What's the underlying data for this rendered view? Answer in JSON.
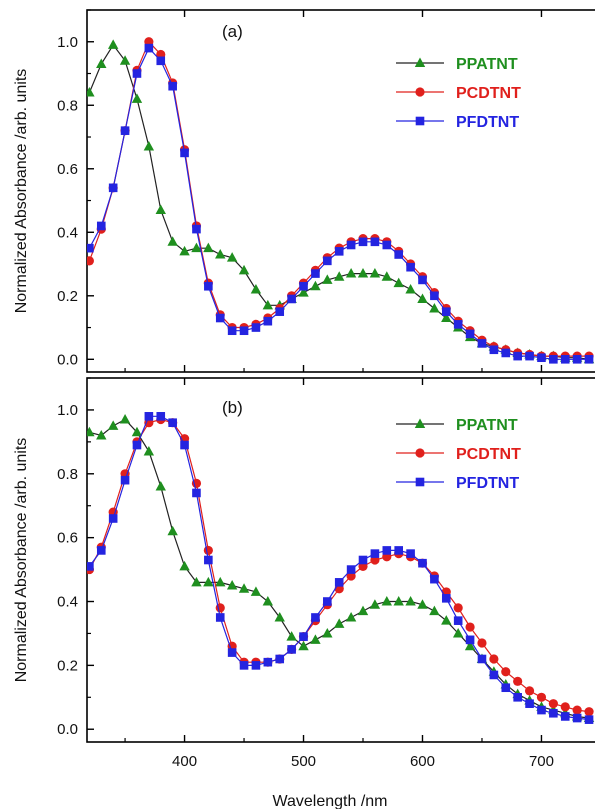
{
  "chart_data": [
    {
      "type": "line",
      "panel_label": "(a)",
      "xlim": [
        318,
        745
      ],
      "ylim": [
        -0.04,
        1.1
      ],
      "y_ticks": [
        0.0,
        0.2,
        0.4,
        0.6,
        0.8,
        1.0
      ],
      "y_tick_labels": [
        "0.0",
        "0.2",
        "0.4",
        "0.6",
        "0.8",
        "1.0"
      ],
      "x_ticks": [
        400,
        500,
        600,
        700
      ],
      "legend_position": "top-right",
      "series": [
        {
          "name": "PPATNT",
          "color": "#1f8f1f",
          "marker": "triangle",
          "x": [
            320,
            330,
            340,
            350,
            360,
            370,
            380,
            390,
            400,
            410,
            420,
            430,
            440,
            450,
            460,
            470,
            480,
            490,
            500,
            510,
            520,
            530,
            540,
            550,
            560,
            570,
            580,
            590,
            600,
            610,
            620,
            630,
            640,
            650,
            660,
            670,
            680,
            690,
            700,
            710,
            720,
            730,
            740
          ],
          "y": [
            0.84,
            0.93,
            0.99,
            0.94,
            0.82,
            0.67,
            0.47,
            0.37,
            0.34,
            0.35,
            0.35,
            0.33,
            0.32,
            0.28,
            0.22,
            0.17,
            0.17,
            0.19,
            0.21,
            0.23,
            0.25,
            0.26,
            0.27,
            0.27,
            0.27,
            0.26,
            0.24,
            0.22,
            0.19,
            0.16,
            0.13,
            0.1,
            0.07,
            0.05,
            0.04,
            0.03,
            0.02,
            0.015,
            0.01,
            0.01,
            0.005,
            0.005,
            0.0
          ]
        },
        {
          "name": "PCDTNT",
          "color": "#e0201c",
          "marker": "circle",
          "x": [
            320,
            330,
            340,
            350,
            360,
            370,
            380,
            390,
            400,
            410,
            420,
            430,
            440,
            450,
            460,
            470,
            480,
            490,
            500,
            510,
            520,
            530,
            540,
            550,
            560,
            570,
            580,
            590,
            600,
            610,
            620,
            630,
            640,
            650,
            660,
            670,
            680,
            690,
            700,
            710,
            720,
            730,
            740
          ],
          "y": [
            0.31,
            0.41,
            0.54,
            0.72,
            0.91,
            1.0,
            0.96,
            0.87,
            0.66,
            0.42,
            0.24,
            0.14,
            0.1,
            0.1,
            0.11,
            0.13,
            0.16,
            0.2,
            0.24,
            0.28,
            0.32,
            0.35,
            0.37,
            0.38,
            0.38,
            0.37,
            0.34,
            0.3,
            0.26,
            0.21,
            0.16,
            0.12,
            0.09,
            0.06,
            0.04,
            0.03,
            0.02,
            0.015,
            0.01,
            0.01,
            0.01,
            0.01,
            0.01
          ]
        },
        {
          "name": "PFDTNT",
          "color": "#2424e0",
          "marker": "square",
          "x": [
            320,
            330,
            340,
            350,
            360,
            370,
            380,
            390,
            400,
            410,
            420,
            430,
            440,
            450,
            460,
            470,
            480,
            490,
            500,
            510,
            520,
            530,
            540,
            550,
            560,
            570,
            580,
            590,
            600,
            610,
            620,
            630,
            640,
            650,
            660,
            670,
            680,
            690,
            700,
            710,
            720,
            730,
            740
          ],
          "y": [
            0.35,
            0.42,
            0.54,
            0.72,
            0.9,
            0.98,
            0.94,
            0.86,
            0.65,
            0.41,
            0.23,
            0.13,
            0.09,
            0.09,
            0.1,
            0.12,
            0.15,
            0.19,
            0.23,
            0.27,
            0.31,
            0.34,
            0.36,
            0.37,
            0.37,
            0.36,
            0.33,
            0.29,
            0.25,
            0.2,
            0.15,
            0.11,
            0.08,
            0.05,
            0.03,
            0.02,
            0.01,
            0.01,
            0.005,
            0.0,
            0.0,
            0.0,
            0.0
          ]
        }
      ]
    },
    {
      "type": "line",
      "panel_label": "(b)",
      "xlim": [
        318,
        745
      ],
      "ylim": [
        -0.04,
        1.1
      ],
      "y_ticks": [
        0.0,
        0.2,
        0.4,
        0.6,
        0.8,
        1.0
      ],
      "y_tick_labels": [
        "0.0",
        "0.2",
        "0.4",
        "0.6",
        "0.8",
        "1.0"
      ],
      "x_ticks": [
        400,
        500,
        600,
        700
      ],
      "x_tick_labels": [
        "400",
        "500",
        "600",
        "700"
      ],
      "xlabel": "Wavelength /nm",
      "legend_position": "top-right",
      "series": [
        {
          "name": "PPATNT",
          "color": "#1f8f1f",
          "marker": "triangle",
          "x": [
            320,
            330,
            340,
            350,
            360,
            370,
            380,
            390,
            400,
            410,
            420,
            430,
            440,
            450,
            460,
            470,
            480,
            490,
            500,
            510,
            520,
            530,
            540,
            550,
            560,
            570,
            580,
            590,
            600,
            610,
            620,
            630,
            640,
            650,
            660,
            670,
            680,
            690,
            700,
            710,
            720,
            730,
            740
          ],
          "y": [
            0.93,
            0.92,
            0.95,
            0.97,
            0.93,
            0.87,
            0.76,
            0.62,
            0.51,
            0.46,
            0.46,
            0.46,
            0.45,
            0.44,
            0.43,
            0.4,
            0.35,
            0.29,
            0.26,
            0.28,
            0.3,
            0.33,
            0.35,
            0.37,
            0.39,
            0.4,
            0.4,
            0.4,
            0.39,
            0.37,
            0.34,
            0.3,
            0.26,
            0.22,
            0.18,
            0.14,
            0.11,
            0.09,
            0.07,
            0.06,
            0.05,
            0.04,
            0.035
          ]
        },
        {
          "name": "PCDTNT",
          "color": "#e0201c",
          "marker": "circle",
          "x": [
            320,
            330,
            340,
            350,
            360,
            370,
            380,
            390,
            400,
            410,
            420,
            430,
            440,
            450,
            460,
            470,
            480,
            490,
            500,
            510,
            520,
            530,
            540,
            550,
            560,
            570,
            580,
            590,
            600,
            610,
            620,
            630,
            640,
            650,
            660,
            670,
            680,
            690,
            700,
            710,
            720,
            730,
            740
          ],
          "y": [
            0.5,
            0.57,
            0.68,
            0.8,
            0.9,
            0.96,
            0.97,
            0.96,
            0.91,
            0.77,
            0.56,
            0.38,
            0.26,
            0.21,
            0.21,
            0.21,
            0.22,
            0.25,
            0.29,
            0.34,
            0.39,
            0.44,
            0.48,
            0.51,
            0.53,
            0.54,
            0.55,
            0.54,
            0.52,
            0.48,
            0.43,
            0.38,
            0.32,
            0.27,
            0.22,
            0.18,
            0.15,
            0.12,
            0.1,
            0.08,
            0.07,
            0.06,
            0.055
          ]
        },
        {
          "name": "PFDTNT",
          "color": "#2424e0",
          "marker": "square",
          "x": [
            320,
            330,
            340,
            350,
            360,
            370,
            380,
            390,
            400,
            410,
            420,
            430,
            440,
            450,
            460,
            470,
            480,
            490,
            500,
            510,
            520,
            530,
            540,
            550,
            560,
            570,
            580,
            590,
            600,
            610,
            620,
            630,
            640,
            650,
            660,
            670,
            680,
            690,
            700,
            710,
            720,
            730,
            740
          ],
          "y": [
            0.51,
            0.56,
            0.66,
            0.78,
            0.89,
            0.98,
            0.98,
            0.96,
            0.89,
            0.74,
            0.53,
            0.35,
            0.24,
            0.2,
            0.2,
            0.21,
            0.22,
            0.25,
            0.29,
            0.35,
            0.4,
            0.46,
            0.5,
            0.53,
            0.55,
            0.56,
            0.56,
            0.55,
            0.52,
            0.47,
            0.41,
            0.34,
            0.28,
            0.22,
            0.17,
            0.13,
            0.1,
            0.08,
            0.06,
            0.05,
            0.04,
            0.035,
            0.03
          ]
        }
      ]
    }
  ],
  "ylabel": "Normalized Absorbance /arb. units"
}
